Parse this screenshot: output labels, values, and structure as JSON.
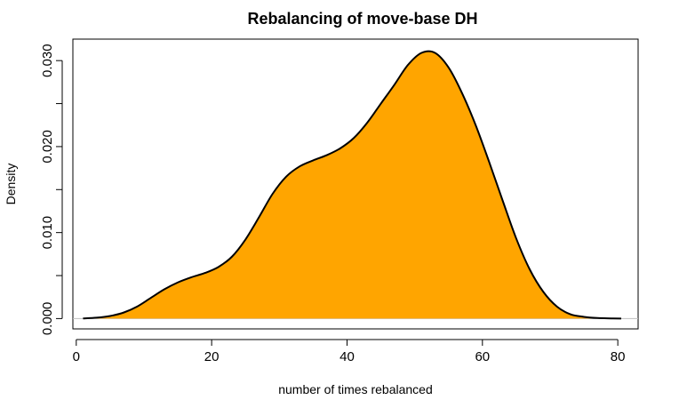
{
  "chart_data": {
    "type": "area",
    "title": "Rebalancing of move-base DH",
    "xlabel": "number of times rebalanced",
    "ylabel": "Density",
    "xlim": [
      -0.5,
      83
    ],
    "ylim": [
      -0.0012,
      0.0325
    ],
    "x_ticks": [
      0,
      20,
      40,
      60,
      80
    ],
    "x_tick_labels": [
      "0",
      "20",
      "40",
      "60",
      "80"
    ],
    "y_ticks": [
      0.0,
      0.005,
      0.01,
      0.015,
      0.02,
      0.025,
      0.03
    ],
    "y_tick_labels": [
      "0.000",
      "",
      "0.010",
      "",
      "0.020",
      "",
      "0.030"
    ],
    "grid": false,
    "baseline": 0,
    "colors": {
      "fill": "#FFA500",
      "line": "#000000",
      "baseline": "#bebebe"
    },
    "series": [
      {
        "x": [
          1,
          3,
          5,
          7,
          9,
          11,
          13,
          15,
          17,
          19,
          21,
          23,
          25,
          27,
          29,
          31,
          33,
          35,
          37,
          39,
          41,
          43,
          45,
          47,
          49,
          51,
          53,
          55,
          57,
          59,
          61,
          63,
          65,
          67,
          69,
          71,
          73,
          75,
          77,
          79,
          80.5
        ],
        "y": [
          2e-05,
          0.0001,
          0.0003,
          0.0007,
          0.0014,
          0.0024,
          0.0034,
          0.0042,
          0.0048,
          0.0053,
          0.006,
          0.0072,
          0.0092,
          0.0118,
          0.0145,
          0.0165,
          0.0177,
          0.0184,
          0.019,
          0.0198,
          0.021,
          0.0228,
          0.025,
          0.0272,
          0.0295,
          0.0309,
          0.0309,
          0.0292,
          0.0262,
          0.0225,
          0.0182,
          0.0137,
          0.0093,
          0.0057,
          0.0031,
          0.0014,
          0.0005,
          0.0002,
          6e-05,
          2e-05,
          0.0
        ]
      }
    ]
  }
}
